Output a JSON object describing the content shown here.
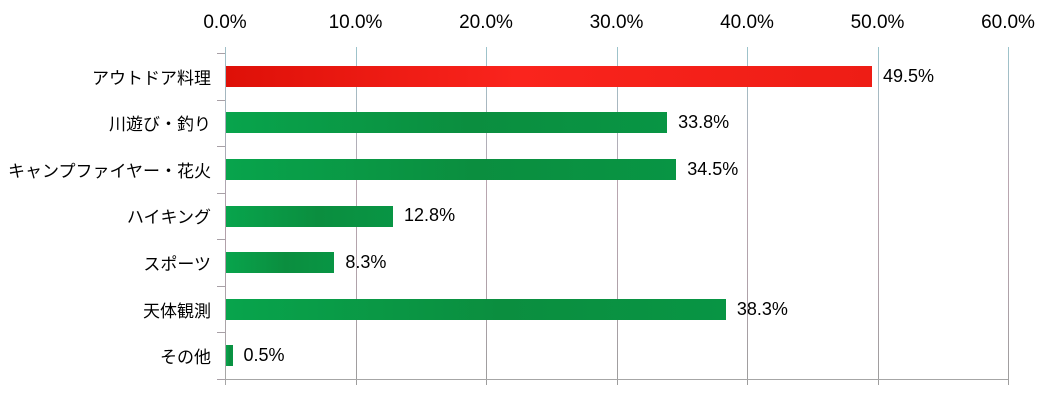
{
  "chart_data": {
    "type": "bar",
    "orientation": "horizontal",
    "title": "",
    "categories": [
      "アウトドア料理",
      "川遊び・釣り",
      "キャンプファイヤー・花火",
      "ハイキング",
      "スポーツ",
      "天体観測",
      "その他"
    ],
    "values": [
      49.5,
      33.8,
      34.5,
      12.8,
      8.3,
      38.3,
      0.5
    ],
    "data_labels": [
      "49.5%",
      "33.8%",
      "34.5%",
      "12.8%",
      "8.3%",
      "38.3%",
      "0.5%"
    ],
    "x_axis": {
      "position": "top",
      "tick_labels": [
        "0.0%",
        "10.0%",
        "20.0%",
        "30.0%",
        "40.0%",
        "50.0%",
        "60.0%"
      ],
      "tick_values": [
        0,
        10,
        20,
        30,
        40,
        50,
        60
      ],
      "min": 0,
      "max": 60
    },
    "grid": true,
    "legend": false,
    "highlight_index": 0,
    "colors": {
      "highlight_bar": "#ee1d15",
      "default_bar": "#0a9444",
      "red_bar_stops": [
        "#de1008",
        "#fa241d",
        "#ee1d15"
      ],
      "green_bar_stops": [
        "#08a44c",
        "#0b8e3f",
        "#089544"
      ],
      "grid_stops": [
        "#9cc4cc",
        "#b9a6b0",
        "#b0a2aa",
        "#9d9d9d"
      ],
      "axis_line_stops": [
        "#9fbfc7",
        "#b3a0ab",
        "#a6a6a6"
      ],
      "bottom_border": "#a6a6a6",
      "tick_mark": "#a8a0a6",
      "text": "#000000",
      "background": "#ffffff"
    }
  }
}
